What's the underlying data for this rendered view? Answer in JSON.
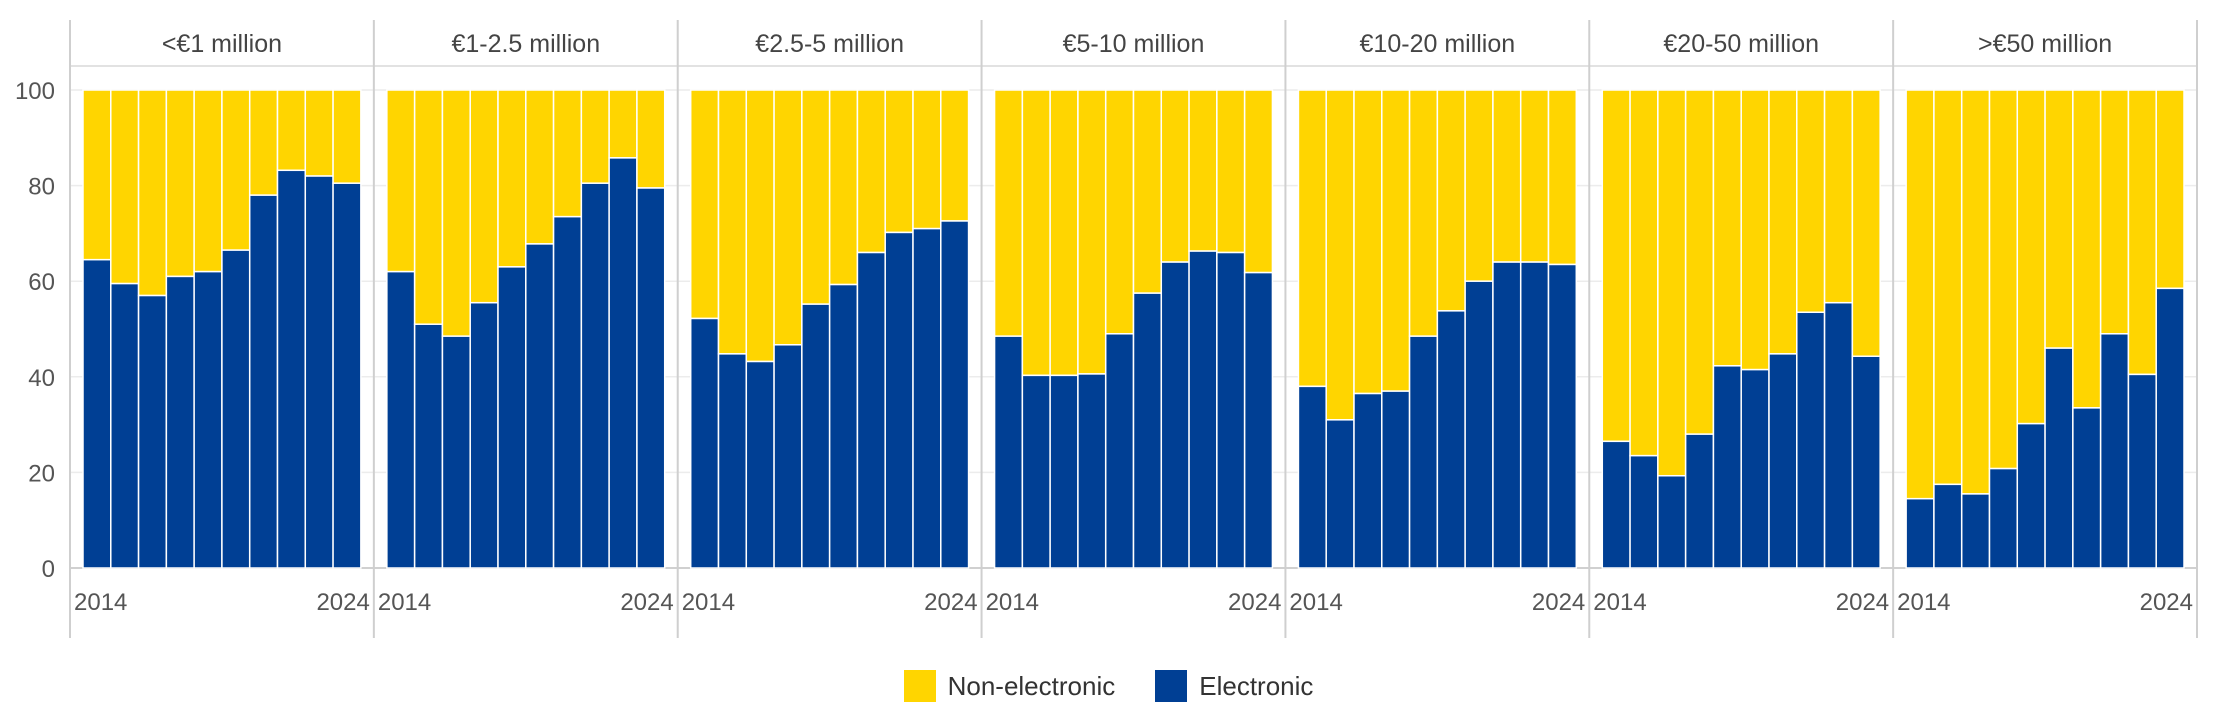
{
  "chart_data": {
    "type": "bar",
    "stacked": true,
    "x_tick_labels": [
      "2014",
      "2024"
    ],
    "ylim": [
      0,
      100
    ],
    "yticks": [
      0,
      20,
      40,
      60,
      80,
      100
    ],
    "grid": true,
    "legend_position": "bottom-center",
    "colors": {
      "non_electronic": "#ffd500",
      "electronic": "#003f94"
    },
    "legend": [
      {
        "key": "non_electronic",
        "label": "Non-electronic"
      },
      {
        "key": "electronic",
        "label": "Electronic"
      }
    ],
    "panels": [
      {
        "title": "<€1 million",
        "electronic": [
          64.5,
          59.5,
          57,
          61,
          62,
          66.5,
          78,
          83.2,
          82,
          80.5
        ]
      },
      {
        "title": "€1-2.5 million",
        "electronic": [
          62,
          51,
          48.5,
          55.5,
          63,
          67.8,
          73.5,
          80.5,
          85.8,
          79.5
        ]
      },
      {
        "title": "€2.5-5 million",
        "electronic": [
          52.2,
          44.8,
          43.2,
          46.7,
          55.2,
          59.3,
          66,
          70.2,
          71,
          72.6
        ]
      },
      {
        "title": "€5-10 million",
        "electronic": [
          48.5,
          40.3,
          40.3,
          40.6,
          49,
          57.5,
          64,
          66.3,
          66,
          61.8
        ]
      },
      {
        "title": "€10-20 million",
        "electronic": [
          38,
          31,
          36.5,
          37,
          48.5,
          53.8,
          60,
          64,
          64,
          63.5
        ]
      },
      {
        "title": "€20-50 million",
        "electronic": [
          26.5,
          23.5,
          19.3,
          28,
          42.3,
          41.5,
          44.8,
          53.5,
          55.5,
          44.3
        ]
      },
      {
        "title": ">€50 million",
        "electronic": [
          14.5,
          17.5,
          15.5,
          20.8,
          30.2,
          46,
          33.5,
          49,
          40.5,
          58.5
        ]
      }
    ]
  }
}
